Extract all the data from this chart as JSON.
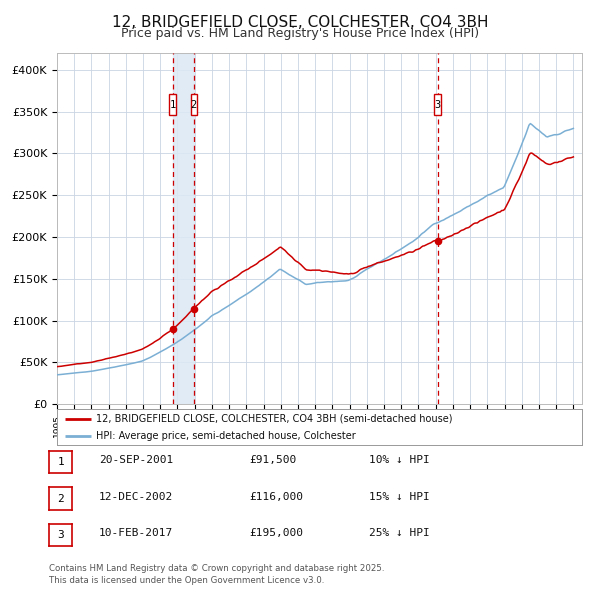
{
  "title": "12, BRIDGEFIELD CLOSE, COLCHESTER, CO4 3BH",
  "subtitle": "Price paid vs. HM Land Registry's House Price Index (HPI)",
  "title_fontsize": 11,
  "subtitle_fontsize": 9,
  "background_color": "#ffffff",
  "plot_bg_color": "#ffffff",
  "grid_color": "#c8d4e3",
  "hpi_line_color": "#7bafd4",
  "price_line_color": "#cc0000",
  "highlight_fill": "#dce8f5",
  "dashed_color": "#cc0000",
  "ylim": [
    0,
    420000
  ],
  "ytick_labels": [
    "£0",
    "£50K",
    "£100K",
    "£150K",
    "£200K",
    "£250K",
    "£300K",
    "£350K",
    "£400K"
  ],
  "ytick_values": [
    0,
    50000,
    100000,
    150000,
    200000,
    250000,
    300000,
    350000,
    400000
  ],
  "sale1_date": 2001.72,
  "sale1_price": 91500,
  "sale2_date": 2002.95,
  "sale2_price": 116000,
  "sale3_date": 2017.11,
  "sale3_price": 195000,
  "legend_line1": "12, BRIDGEFIELD CLOSE, COLCHESTER, CO4 3BH (semi-detached house)",
  "legend_line2": "HPI: Average price, semi-detached house, Colchester",
  "table_entries": [
    {
      "num": "1",
      "date": "20-SEP-2001",
      "price": "£91,500",
      "pct": "10% ↓ HPI"
    },
    {
      "num": "2",
      "date": "12-DEC-2002",
      "price": "£116,000",
      "pct": "15% ↓ HPI"
    },
    {
      "num": "3",
      "date": "10-FEB-2017",
      "price": "£195,000",
      "pct": "25% ↓ HPI"
    }
  ],
  "footnote": "Contains HM Land Registry data © Crown copyright and database right 2025.\nThis data is licensed under the Open Government Licence v3.0."
}
